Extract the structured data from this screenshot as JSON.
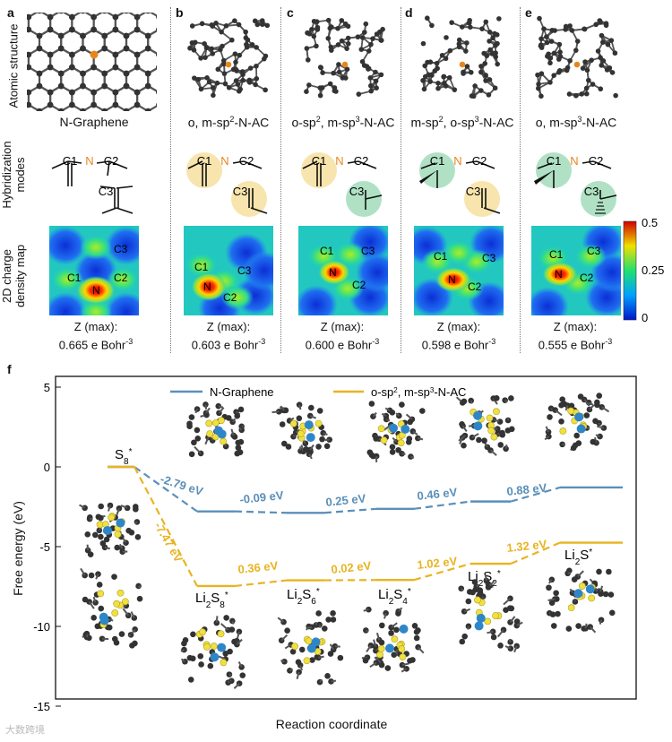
{
  "top": {
    "panel_labels": [
      "a",
      "b",
      "c",
      "d",
      "e"
    ],
    "row_labels": [
      "Atomic structure",
      "Hybridization modes",
      "2D charge density map"
    ],
    "structure_captions": [
      {
        "main": "N-Graphene"
      },
      {
        "main": "o, m-sp",
        "sup1": "2",
        "rest": "-N-AC"
      },
      {
        "main": "o-sp",
        "sup1": "2",
        "mid": ", m-sp",
        "sup2": "3",
        "rest": "-N-AC"
      },
      {
        "main": "m-sp",
        "sup1": "2",
        "mid": ", o-sp",
        "sup2": "3",
        "rest": "-N-AC"
      },
      {
        "main": "o, m-sp",
        "sup1": "3",
        "rest": "-N-AC"
      }
    ],
    "hyb_labels": {
      "c1": "C1",
      "c2": "C2",
      "c3": "C3",
      "n": "N"
    },
    "map_labels": {
      "c1": "C1",
      "c2": "C2",
      "c3": "C3",
      "n": "N"
    },
    "zmax_label": "Z (max):",
    "zmax_values": [
      "0.665",
      "0.603",
      "0.600",
      "0.598",
      "0.555"
    ],
    "zmax_unit": "e Bohr",
    "zmax_unit_sup": "-3",
    "colorbar": {
      "ticks": [
        "0.5",
        "0.25",
        "0"
      ]
    }
  },
  "chart_data": {
    "type": "line",
    "panel_label": "f",
    "ylabel": "Free energy (eV)",
    "xlabel": "Reaction coordinate",
    "ylim": [
      -15,
      5
    ],
    "yticks": [
      "5",
      "0",
      "-5",
      "-10",
      "-15"
    ],
    "legend": [
      "N-Graphene",
      "o-sp2, m-sp3-N-AC"
    ],
    "legend_display": [
      {
        "text": "N-Graphene"
      },
      {
        "main": "o-sp",
        "sup1": "2",
        "mid": ", m-sp",
        "sup2": "3",
        "rest": "-N-AC"
      }
    ],
    "colors": {
      "n_graphene": "#5b8fb9",
      "n_ac": "#e8b421"
    },
    "species": [
      {
        "base": "S",
        "sub": "8",
        "sup": "*"
      },
      {
        "base": "Li",
        "sub": "2",
        "mid": "S",
        "sub2": "8",
        "sup": "*"
      },
      {
        "base": "Li",
        "sub": "2",
        "mid": "S",
        "sub2": "6",
        "sup": "*"
      },
      {
        "base": "Li",
        "sub": "2",
        "mid": "S",
        "sub2": "4",
        "sup": "*"
      },
      {
        "base": "Li",
        "sub": "2",
        "mid": "S",
        "sub2": "2",
        "sup": "*"
      },
      {
        "base": "Li",
        "sub": "2",
        "mid": "S",
        "sup": "*"
      }
    ],
    "series": [
      {
        "name": "N-Graphene",
        "values": [
          0,
          -2.79,
          -2.88,
          -2.63,
          -2.17,
          -1.29
        ],
        "step_labels": [
          "-2.79 eV",
          "-0.09 eV",
          "0.25 eV",
          "0.46 eV",
          "0.88 eV"
        ]
      },
      {
        "name": "o-sp2, m-sp3-N-AC",
        "values": [
          0,
          -7.47,
          -7.11,
          -7.09,
          -6.07,
          -4.75
        ],
        "step_labels": [
          "-7.47 eV",
          "0.36 eV",
          "0.02 eV",
          "1.02 eV",
          "1.32 eV"
        ]
      }
    ]
  },
  "watermark": "大数跨境"
}
